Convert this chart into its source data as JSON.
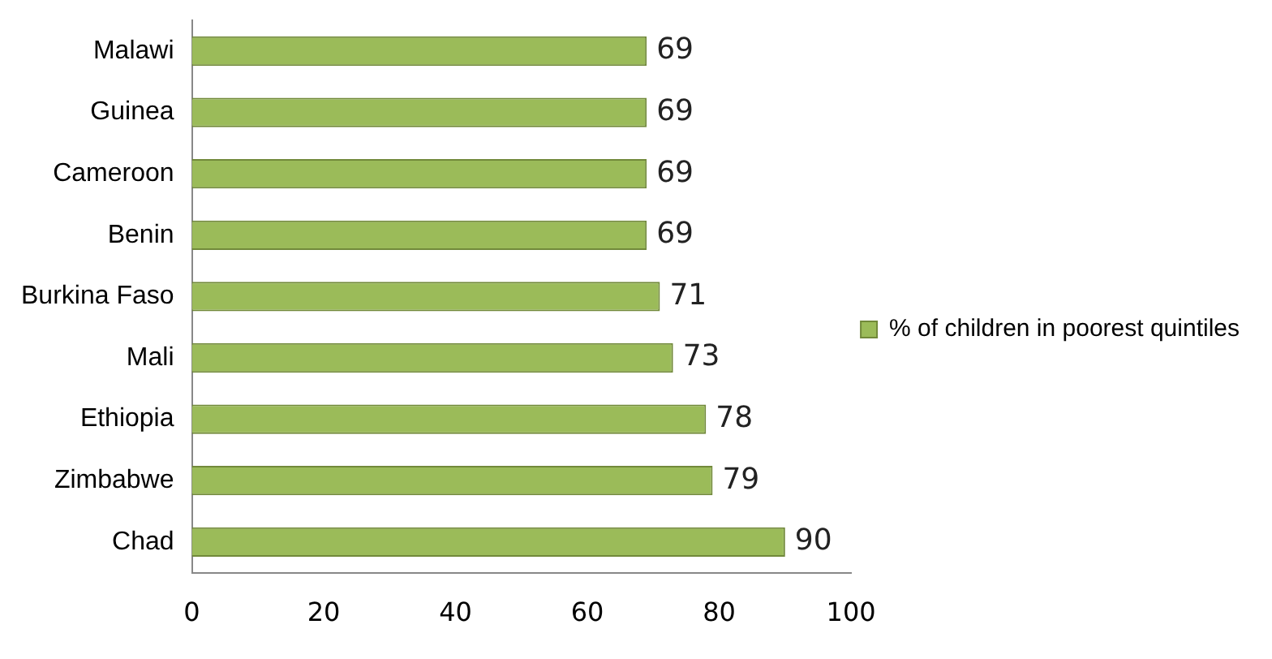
{
  "chart_data": {
    "type": "bar",
    "orientation": "horizontal",
    "categories": [
      "Malawi",
      "Guinea",
      "Cameroon",
      "Benin",
      "Burkina Faso",
      "Mali",
      "Ethiopia",
      "Zimbabwe",
      "Chad"
    ],
    "series": [
      {
        "name": "% of children in poorest quintiles",
        "color": "#9bbb59",
        "values": [
          69,
          69,
          69,
          69,
          71,
          73,
          78,
          79,
          90
        ]
      }
    ],
    "xlim": [
      0,
      100
    ],
    "xticks": [
      0,
      20,
      40,
      60,
      80,
      100
    ],
    "grid": false,
    "legend": "right",
    "data_labels": true
  }
}
